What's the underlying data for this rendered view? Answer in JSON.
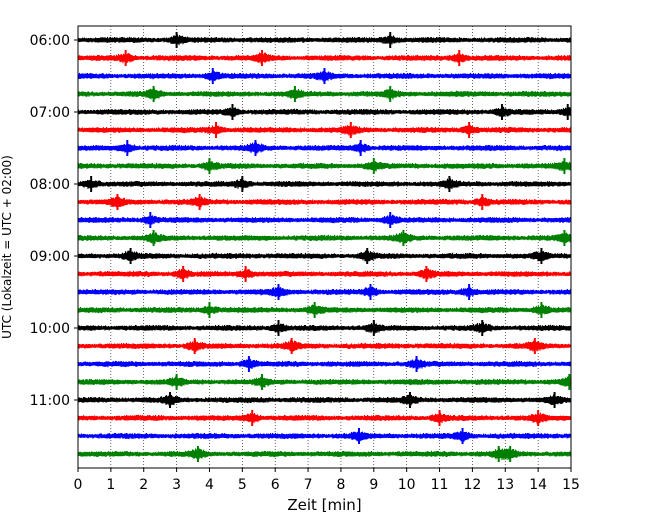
{
  "chart_data": {
    "type": "line",
    "title": "",
    "xlabel": "Zeit  [min]",
    "ylabel": "UTC (Lokalzeit = UTC + 02:00)",
    "xlim": [
      0,
      15
    ],
    "x_ticks": [
      0,
      1,
      2,
      3,
      4,
      5,
      6,
      7,
      8,
      9,
      10,
      11,
      12,
      13,
      14,
      15
    ],
    "x_tick_labels": [
      "0",
      "1",
      "2",
      "3",
      "4",
      "5",
      "6",
      "7",
      "8",
      "9",
      "10",
      "11",
      "12",
      "13",
      "14",
      "15"
    ],
    "y_tick_labels": [
      "06:00",
      "07:00",
      "08:00",
      "09:00",
      "10:00",
      "11:00"
    ],
    "y_tick_rows": [
      0,
      4,
      8,
      12,
      16,
      20
    ],
    "grid": "vertical-dotted",
    "row_minutes": 15,
    "row_colors": [
      "#000000",
      "#ff0000",
      "#0000ff",
      "#008000"
    ],
    "rows": [
      {
        "start": "06:00",
        "color": "#000000",
        "events": [
          3.0,
          9.5
        ]
      },
      {
        "start": "06:15",
        "color": "#ff0000",
        "events": [
          1.45,
          5.6,
          11.6
        ]
      },
      {
        "start": "06:30",
        "color": "#0000ff",
        "events": [
          4.1,
          7.5
        ]
      },
      {
        "start": "06:45",
        "color": "#008000",
        "events": [
          2.3,
          6.6,
          9.5
        ]
      },
      {
        "start": "07:00",
        "color": "#000000",
        "events": [
          4.7,
          12.9,
          14.9
        ]
      },
      {
        "start": "07:15",
        "color": "#ff0000",
        "events": [
          4.2,
          8.3,
          11.9
        ]
      },
      {
        "start": "07:30",
        "color": "#0000ff",
        "events": [
          1.5,
          5.4,
          8.6
        ]
      },
      {
        "start": "07:45",
        "color": "#008000",
        "events": [
          4.0,
          9.0,
          14.8
        ]
      },
      {
        "start": "08:00",
        "color": "#000000",
        "events": [
          0.4,
          5.0,
          11.3
        ]
      },
      {
        "start": "08:15",
        "color": "#ff0000",
        "events": [
          1.2,
          3.7,
          12.3
        ]
      },
      {
        "start": "08:30",
        "color": "#0000ff",
        "events": [
          2.2,
          9.5
        ]
      },
      {
        "start": "08:45",
        "color": "#008000",
        "events": [
          2.3,
          9.9,
          14.8
        ]
      },
      {
        "start": "09:00",
        "color": "#000000",
        "events": [
          1.6,
          8.8,
          14.1
        ]
      },
      {
        "start": "09:15",
        "color": "#ff0000",
        "events": [
          3.2,
          5.1,
          10.6
        ]
      },
      {
        "start": "09:30",
        "color": "#0000ff",
        "events": [
          6.1,
          8.9,
          11.9
        ]
      },
      {
        "start": "09:45",
        "color": "#008000",
        "events": [
          4.0,
          7.2,
          14.1
        ]
      },
      {
        "start": "10:00",
        "color": "#000000",
        "events": [
          6.1,
          9.0,
          12.3
        ]
      },
      {
        "start": "10:15",
        "color": "#ff0000",
        "events": [
          3.55,
          6.5,
          13.9
        ]
      },
      {
        "start": "10:30",
        "color": "#0000ff",
        "events": [
          5.2,
          10.3
        ]
      },
      {
        "start": "10:45",
        "color": "#008000",
        "events": [
          3.0,
          5.6,
          14.95
        ]
      },
      {
        "start": "11:00",
        "color": "#000000",
        "events": [
          2.8,
          10.1,
          14.5
        ]
      },
      {
        "start": "11:15",
        "color": "#ff0000",
        "events": [
          5.3,
          11.0,
          14.0
        ]
      },
      {
        "start": "11:30",
        "color": "#0000ff",
        "events": [
          8.55,
          11.7
        ]
      },
      {
        "start": "11:45",
        "color": "#008000",
        "events": [
          3.65,
          12.8,
          13.15
        ]
      }
    ]
  }
}
